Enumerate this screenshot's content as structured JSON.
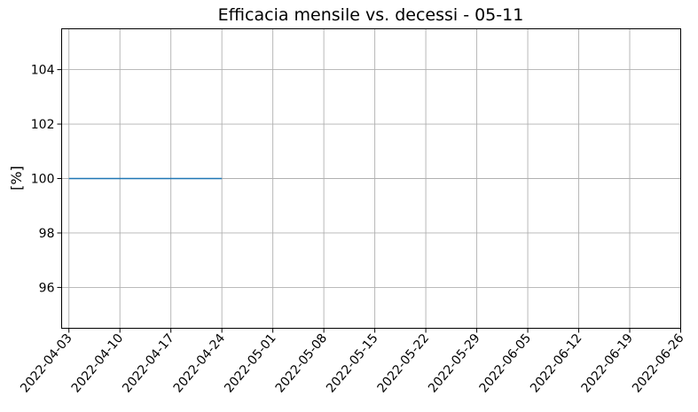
{
  "chart_data": {
    "type": "line",
    "title": "Efficacia mensile vs. decessi - 05-11",
    "xlabel": "",
    "ylabel": "[%]",
    "x_ticks": [
      "2022-04-03",
      "2022-04-10",
      "2022-04-17",
      "2022-04-24",
      "2022-05-01",
      "2022-05-08",
      "2022-05-15",
      "2022-05-22",
      "2022-05-29",
      "2022-06-05",
      "2022-06-12",
      "2022-06-19",
      "2022-06-26"
    ],
    "y_ticks": [
      "96",
      "98",
      "100",
      "102",
      "104"
    ],
    "xlim": [
      "2022-04-02",
      "2022-06-26"
    ],
    "ylim": [
      94.5,
      105.5
    ],
    "grid": true,
    "series": [
      {
        "color": "#1f77b4",
        "points": [
          {
            "x": "2022-04-03",
            "y": 100
          },
          {
            "x": "2022-04-24",
            "y": 100
          }
        ]
      }
    ]
  }
}
